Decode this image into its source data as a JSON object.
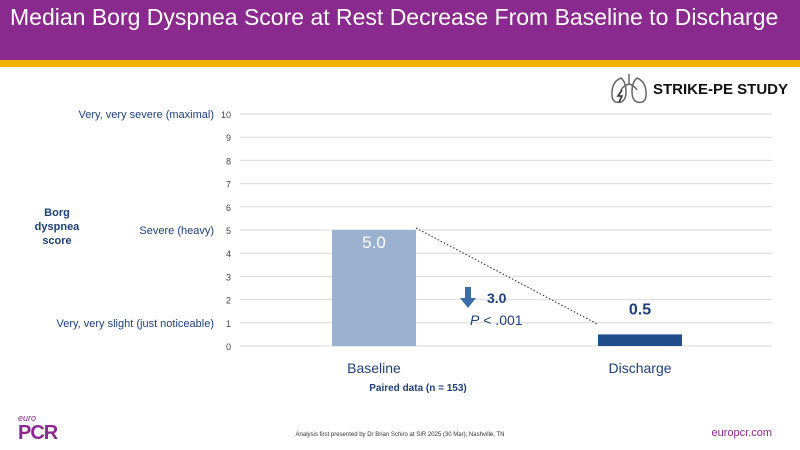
{
  "slide": {
    "title": "Median Borg Dyspnea Score at Rest Decrease From Baseline to Discharge",
    "study_name": "STRIKE-PE STUDY",
    "footnote": "Analysis first presented by Dr Brian Schiro at SIR 2025 (30 Mar); Nashville, TN",
    "logo_prefix": "euro",
    "logo_main": "PCR",
    "website": "europcr.com"
  },
  "colors": {
    "header": "#8b2a8e",
    "accent_bar": "#f5b301",
    "baseline_bar": "#9ab2d0",
    "discharge_bar": "#1f4e8c",
    "text_blue": "#1f3f7a"
  },
  "chart_data": {
    "type": "bar",
    "categories": [
      "Baseline",
      "Discharge"
    ],
    "values": [
      5.0,
      0.5
    ],
    "value_labels": [
      "5.0",
      "0.5"
    ],
    "ylabel": "Borg dyspnea score",
    "ylim": [
      0,
      10
    ],
    "yticks": [
      0,
      1,
      2,
      3,
      4,
      5,
      6,
      7,
      8,
      9,
      10
    ],
    "scale_descriptors": [
      {
        "value": 10,
        "text": "Very, very severe (maximal)"
      },
      {
        "value": 5,
        "text": "Severe (heavy)"
      },
      {
        "value": 1,
        "text": "Very, very slight (just noticeable)"
      }
    ],
    "change": "3.0",
    "p_label": "P",
    "p_value": " < .001",
    "xnote": "Paired data (n = 153)",
    "grid": true
  }
}
